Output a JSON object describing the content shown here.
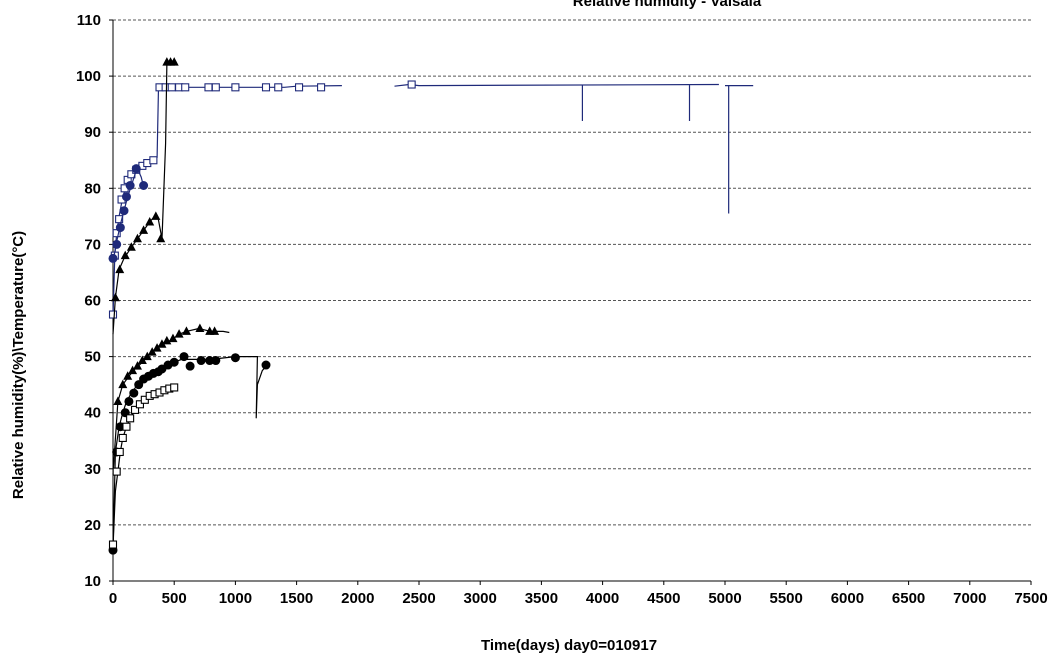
{
  "chart_data": {
    "type": "scatter",
    "title": "Relative humidity - Vaisala",
    "xlabel": "Time(days) day0=010917",
    "ylabel": "Relative humidity(%)\\Temperature(°C)",
    "xlim": [
      0,
      7500
    ],
    "ylim": [
      10,
      110
    ],
    "xticks": [
      0,
      500,
      1000,
      1500,
      2000,
      2500,
      3000,
      3500,
      4000,
      4500,
      5000,
      5500,
      6000,
      6500,
      7000,
      7500
    ],
    "yticks": [
      10,
      20,
      30,
      40,
      50,
      60,
      70,
      80,
      90,
      100,
      110
    ],
    "grid": "horizontal dashed",
    "colors": {
      "black": "#000000",
      "blue": "#1f2a7a",
      "grid": "#555555"
    },
    "series": [
      {
        "marker": "square-open",
        "color": "#1f2a7a",
        "line": [
          [
            0,
            57
          ],
          [
            15,
            68
          ],
          [
            30,
            72
          ],
          [
            50,
            75
          ],
          [
            80,
            78.5
          ],
          [
            110,
            80.5
          ],
          [
            140,
            82
          ],
          [
            180,
            83.2
          ],
          [
            220,
            84
          ],
          [
            270,
            84.7
          ],
          [
            330,
            85.2
          ],
          [
            360,
            85.5
          ],
          [
            372,
            98
          ],
          [
            500,
            98
          ],
          [
            1000,
            98
          ],
          [
            1400,
            98
          ],
          [
            1500,
            98.2
          ],
          [
            1870,
            98.3
          ],
          [
            null,
            null
          ],
          [
            2300,
            98.2
          ],
          [
            2420,
            98.5
          ],
          [
            2500,
            98.3
          ],
          [
            4950,
            98.5
          ],
          [
            null,
            null
          ],
          [
            5000,
            98.3
          ],
          [
            5230,
            98.3
          ]
        ],
        "markers": [
          [
            0,
            57.5
          ],
          [
            15,
            68
          ],
          [
            30,
            72
          ],
          [
            50,
            74.5
          ],
          [
            70,
            78
          ],
          [
            95,
            80
          ],
          [
            120,
            81.5
          ],
          [
            150,
            82.5
          ],
          [
            190,
            83.3
          ],
          [
            240,
            84
          ],
          [
            280,
            84.5
          ],
          [
            330,
            85
          ],
          [
            380,
            98
          ],
          [
            430,
            98
          ],
          [
            480,
            98
          ],
          [
            540,
            98
          ],
          [
            590,
            98
          ],
          [
            780,
            98
          ],
          [
            840,
            98
          ],
          [
            1000,
            98
          ],
          [
            1250,
            98
          ],
          [
            1350,
            98
          ],
          [
            1520,
            98
          ],
          [
            1700,
            98
          ],
          [
            2440,
            98.5
          ]
        ],
        "dips": [
          [
            3835,
            92
          ],
          [
            4710,
            92
          ],
          [
            5030,
            75.5
          ]
        ]
      },
      {
        "marker": "circle",
        "color": "#1f2a7a",
        "line": [
          [
            0,
            67
          ],
          [
            30,
            70.5
          ],
          [
            60,
            73.5
          ],
          [
            90,
            76
          ],
          [
            120,
            78.5
          ],
          [
            150,
            80.5
          ],
          [
            180,
            82.5
          ],
          [
            200,
            83.5
          ],
          [
            230,
            82
          ],
          [
            250,
            80.3
          ]
        ],
        "markers": [
          [
            0,
            67.5
          ],
          [
            30,
            70
          ],
          [
            60,
            73
          ],
          [
            90,
            76
          ],
          [
            110,
            78.5
          ],
          [
            140,
            80.5
          ],
          [
            190,
            83.5
          ],
          [
            250,
            80.5
          ]
        ]
      },
      {
        "marker": "triangle",
        "color": "#000000",
        "line": [
          [
            0,
            54
          ],
          [
            20,
            60.5
          ],
          [
            50,
            65.5
          ],
          [
            90,
            67.5
          ],
          [
            150,
            69.5
          ],
          [
            200,
            71
          ],
          [
            250,
            72.5
          ],
          [
            300,
            74
          ],
          [
            340,
            75
          ],
          [
            370,
            74.5
          ],
          [
            400,
            71
          ],
          [
            430,
            88
          ],
          [
            440,
            102.5
          ],
          [
            520,
            102.5
          ]
        ],
        "markers": [
          [
            20,
            60.5
          ],
          [
            55,
            65.5
          ],
          [
            100,
            68
          ],
          [
            150,
            69.5
          ],
          [
            200,
            71
          ],
          [
            250,
            72.5
          ],
          [
            300,
            74
          ],
          [
            350,
            75
          ],
          [
            390,
            71
          ],
          [
            440,
            102.5
          ],
          [
            470,
            102.5
          ],
          [
            500,
            102.5
          ]
        ]
      },
      {
        "marker": "triangle",
        "color": "#000000",
        "line": [
          [
            0,
            29
          ],
          [
            40,
            42
          ],
          [
            80,
            45
          ],
          [
            130,
            46.5
          ],
          [
            180,
            47.8
          ],
          [
            230,
            48.8
          ],
          [
            280,
            50
          ],
          [
            330,
            51
          ],
          [
            380,
            52
          ],
          [
            430,
            52.5
          ],
          [
            480,
            53
          ],
          [
            540,
            54
          ],
          [
            600,
            54.5
          ],
          [
            700,
            55
          ],
          [
            800,
            54.5
          ],
          [
            900,
            54.5
          ],
          [
            950,
            54.3
          ]
        ],
        "markers": [
          [
            40,
            42
          ],
          [
            80,
            45
          ],
          [
            120,
            46.5
          ],
          [
            160,
            47.5
          ],
          [
            200,
            48.3
          ],
          [
            240,
            49.3
          ],
          [
            280,
            50
          ],
          [
            320,
            50.8
          ],
          [
            360,
            51.5
          ],
          [
            400,
            52.2
          ],
          [
            440,
            52.8
          ],
          [
            490,
            53.2
          ],
          [
            540,
            54
          ],
          [
            600,
            54.5
          ],
          [
            710,
            55
          ],
          [
            790,
            54.5
          ],
          [
            830,
            54.5
          ]
        ]
      },
      {
        "marker": "circle",
        "color": "#000000",
        "line": [
          [
            0,
            15.5
          ],
          [
            20,
            33
          ],
          [
            50,
            37.5
          ],
          [
            80,
            40
          ],
          [
            110,
            42
          ],
          [
            150,
            43.5
          ],
          [
            200,
            45
          ],
          [
            250,
            46
          ],
          [
            300,
            46.8
          ],
          [
            350,
            47.3
          ],
          [
            400,
            47.8
          ],
          [
            450,
            48.5
          ],
          [
            500,
            49
          ],
          [
            560,
            49.5
          ],
          [
            600,
            49.5
          ],
          [
            700,
            49.5
          ],
          [
            800,
            49.5
          ],
          [
            1000,
            50
          ],
          [
            1180,
            50
          ],
          [
            1170,
            39
          ],
          [
            1180,
            45
          ],
          [
            1220,
            47.5
          ],
          [
            1260,
            48.5
          ]
        ],
        "markers": [
          [
            0,
            15.5
          ],
          [
            30,
            33
          ],
          [
            60,
            37.5
          ],
          [
            100,
            40
          ],
          [
            130,
            42
          ],
          [
            170,
            43.5
          ],
          [
            210,
            45
          ],
          [
            250,
            46
          ],
          [
            290,
            46.5
          ],
          [
            330,
            47
          ],
          [
            370,
            47.3
          ],
          [
            400,
            47.8
          ],
          [
            450,
            48.5
          ],
          [
            500,
            49
          ],
          [
            580,
            50
          ],
          [
            630,
            48.3
          ],
          [
            720,
            49.3
          ],
          [
            790,
            49.3
          ],
          [
            840,
            49.3
          ],
          [
            1000,
            49.8
          ],
          [
            1250,
            48.5
          ]
        ]
      },
      {
        "marker": "square-open",
        "color": "#000000",
        "line": [
          [
            0,
            16
          ],
          [
            20,
            26
          ],
          [
            40,
            29.5
          ],
          [
            60,
            33
          ],
          [
            80,
            35.5
          ],
          [
            110,
            37.5
          ],
          [
            150,
            39.5
          ],
          [
            200,
            41
          ],
          [
            250,
            42
          ],
          [
            300,
            43
          ],
          [
            350,
            43.5
          ],
          [
            400,
            44
          ],
          [
            450,
            44.5
          ],
          [
            500,
            44.8
          ]
        ],
        "markers": [
          [
            0,
            16.5
          ],
          [
            30,
            29.5
          ],
          [
            55,
            33
          ],
          [
            80,
            35.5
          ],
          [
            110,
            37.5
          ],
          [
            140,
            39
          ],
          [
            180,
            40.5
          ],
          [
            220,
            41.5
          ],
          [
            260,
            42.3
          ],
          [
            300,
            43
          ],
          [
            340,
            43.3
          ],
          [
            380,
            43.6
          ],
          [
            420,
            44
          ],
          [
            460,
            44.3
          ],
          [
            500,
            44.5
          ]
        ]
      }
    ]
  }
}
